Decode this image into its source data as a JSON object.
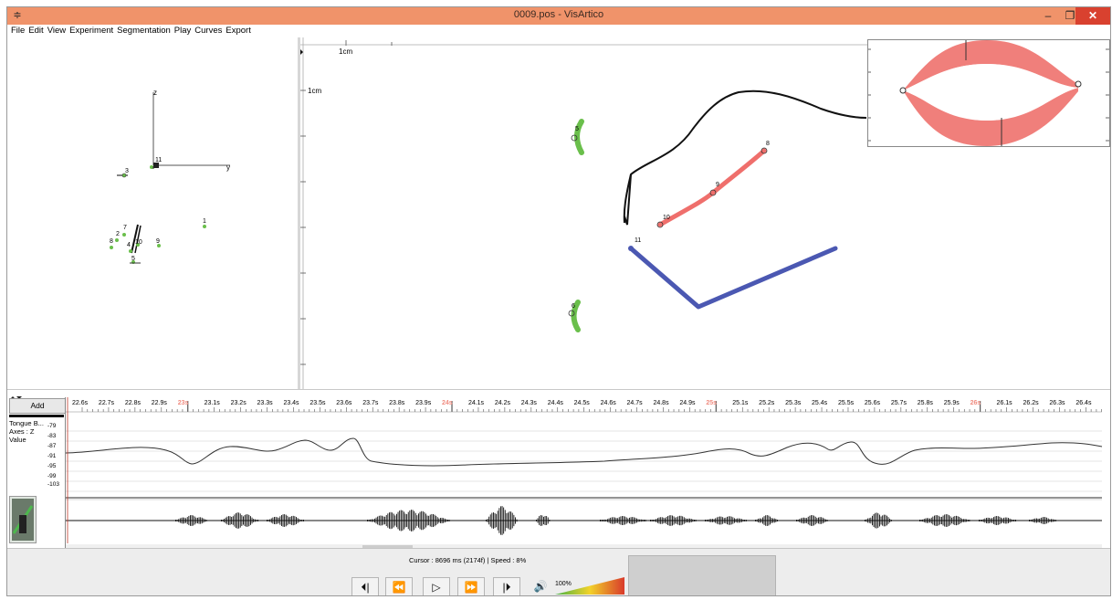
{
  "window": {
    "title": "0009.pos - VisArtico",
    "minimize": "–",
    "restore": "❐",
    "close": "✕",
    "app_icon": "≑"
  },
  "menu": {
    "items": [
      "File",
      "Edit",
      "View",
      "Experiment",
      "Segmentation",
      "Play",
      "Curves",
      "Export"
    ]
  },
  "left_view": {
    "axis_labels": {
      "z": "z",
      "y": "y"
    },
    "points": [
      "3",
      "7",
      "2",
      "8",
      "4",
      "10",
      "9",
      "1",
      "5",
      "11"
    ]
  },
  "main_view": {
    "scale_top": "1cm",
    "scale_left": "1cm",
    "labels": {
      "p5": "5",
      "p6": "6",
      "p8": "8",
      "p9": "9",
      "p10": "10",
      "p11": "11"
    }
  },
  "timeline": {
    "add_label": "Add",
    "times": [
      "22.6s",
      "22.7s",
      "22.8s",
      "22.9s",
      "23s",
      "23.1s",
      "23.2s",
      "23.3s",
      "23.4s",
      "23.5s",
      "23.6s",
      "23.7s",
      "23.8s",
      "23.9s",
      "24s",
      "24.1s",
      "24.2s",
      "24.3s",
      "24.4s",
      "24.5s",
      "24.6s",
      "24.7s",
      "24.8s",
      "24.9s",
      "25s",
      "25.1s",
      "25.2s",
      "25.3s",
      "25.4s",
      "25.5s",
      "25.6s",
      "25.7s",
      "25.8s",
      "25.9s",
      "26s",
      "26.1s",
      "26.2s",
      "26.3s",
      "26.4s"
    ]
  },
  "curve": {
    "name": "Tongue B...",
    "axes": "Axes : Z",
    "value": "Value",
    "yticks": [
      "-79",
      "-83",
      "-87",
      "-91",
      "-95",
      "-99",
      "-103"
    ]
  },
  "controls": {
    "status": "Cursor : 8696 ms (2174f) | Speed : 8%",
    "volume": "100%",
    "buttons": {
      "prev_frame": "⏴|",
      "rewind": "⏪",
      "play": "▷",
      "forward": "⏩",
      "next_frame": "|⏵",
      "speaker": "🔊"
    }
  },
  "colors": {
    "title": "#f0936a",
    "close": "#d9412f",
    "green": "#6abf4b",
    "red": "#ef6f6c",
    "blue": "#4b58b2",
    "lips": "#f07f7b",
    "highlight": "#f08c80"
  }
}
